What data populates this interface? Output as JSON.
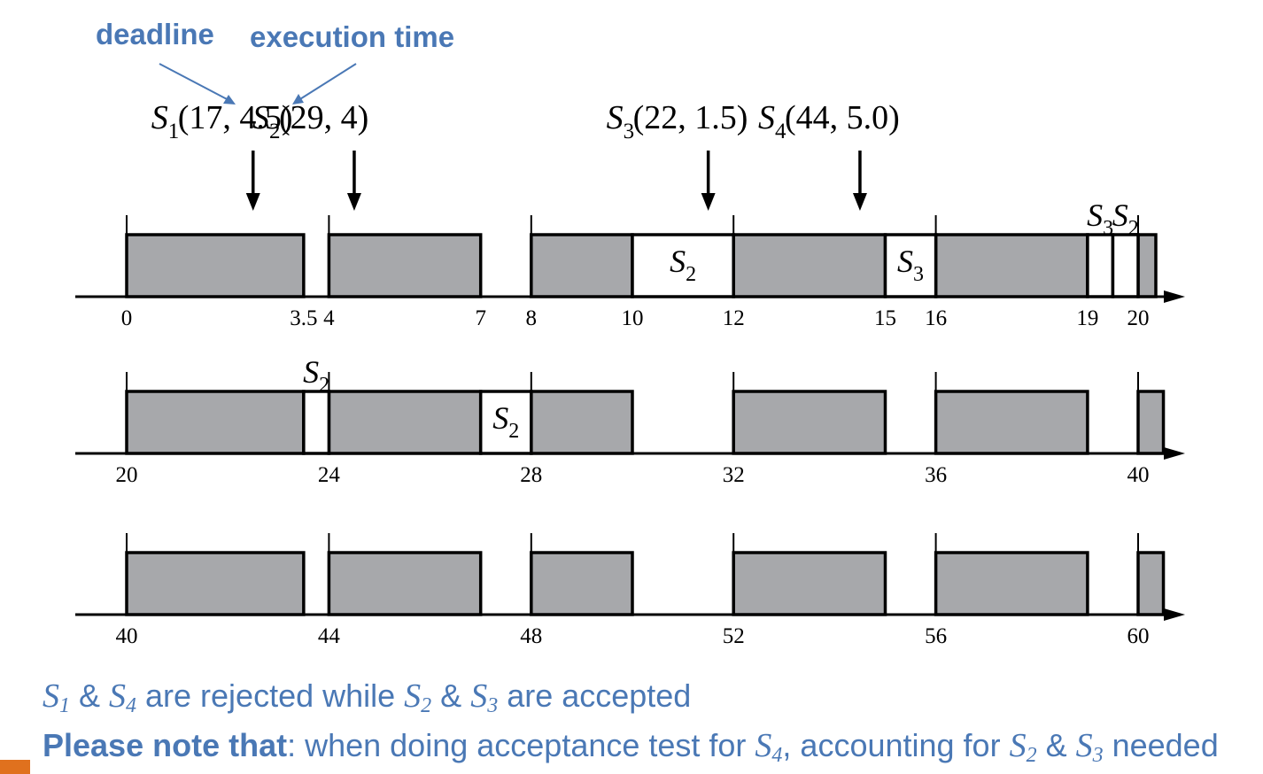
{
  "annotations": {
    "deadline_label": "deadline",
    "execution_time_label": "execution time",
    "color": "#4a78b5"
  },
  "arrivals": [
    {
      "task": "S",
      "sub": "1",
      "params": "(17, 4.5)",
      "arrival_time": 2.5
    },
    {
      "task": "S",
      "sub": "2",
      "params": "(29, 4)",
      "arrival_time": 4.5
    },
    {
      "task": "S",
      "sub": "3",
      "params": "(22, 1.5)",
      "arrival_time": 11.5
    },
    {
      "task": "S",
      "sub": "4",
      "params": "(44, 5.0)",
      "arrival_time": 14.5
    }
  ],
  "colors": {
    "busy_fill": "#a7a8ab",
    "slot_fill": "#ffffff",
    "line": "#000000",
    "caption": "#4a78b5",
    "logo": "#e0711e"
  },
  "rows": [
    {
      "start": 0,
      "end": 20,
      "tick_labels": [
        "0",
        "3.5",
        "4",
        "7",
        "8",
        "10",
        "12",
        "15",
        "16",
        "19",
        "20"
      ],
      "tick_values": [
        0,
        3.5,
        4,
        7,
        8,
        10,
        12,
        15,
        16,
        19,
        20
      ],
      "periodic_ticks": [
        0,
        4,
        8,
        12,
        16,
        20
      ],
      "busy": [
        [
          0,
          3.5
        ],
        [
          4,
          7
        ],
        [
          8,
          10
        ],
        [
          12,
          15
        ],
        [
          16,
          19
        ],
        [
          20,
          20.35
        ]
      ],
      "slots": [
        {
          "from": 10,
          "to": 12,
          "task": "S",
          "sub": "2",
          "label_position": "inside"
        },
        {
          "from": 15,
          "to": 16,
          "task": "S",
          "sub": "3",
          "label_position": "inside"
        },
        {
          "from": 19,
          "to": 19.5,
          "task": "S",
          "sub": "3",
          "label_position": "above"
        },
        {
          "from": 19.5,
          "to": 20,
          "task": "S",
          "sub": "2",
          "label_position": "above"
        }
      ]
    },
    {
      "start": 20,
      "end": 40,
      "tick_labels": [
        "20",
        "24",
        "28",
        "32",
        "36",
        "40"
      ],
      "tick_values": [
        20,
        24,
        28,
        32,
        36,
        40
      ],
      "periodic_ticks": [
        20,
        24,
        28,
        32,
        36,
        40
      ],
      "busy": [
        [
          20,
          23.5
        ],
        [
          24,
          27
        ],
        [
          28,
          30
        ],
        [
          32,
          35
        ],
        [
          36,
          39
        ],
        [
          40,
          40.5
        ]
      ],
      "slots": [
        {
          "from": 23.5,
          "to": 24,
          "task": "S",
          "sub": "2",
          "label_position": "above"
        },
        {
          "from": 27,
          "to": 28,
          "task": "S",
          "sub": "2",
          "label_position": "inside"
        }
      ]
    },
    {
      "start": 40,
      "end": 60,
      "tick_labels": [
        "40",
        "44",
        "48",
        "52",
        "56",
        "60"
      ],
      "tick_values": [
        40,
        44,
        48,
        52,
        56,
        60
      ],
      "periodic_ticks": [
        40,
        44,
        48,
        52,
        56,
        60
      ],
      "busy": [
        [
          40,
          43.5
        ],
        [
          44,
          47
        ],
        [
          48,
          50
        ],
        [
          52,
          55
        ],
        [
          56,
          59
        ],
        [
          60,
          60.5
        ]
      ],
      "slots": []
    }
  ],
  "caption1": {
    "s": "S",
    "s1": "1",
    "amp": " & ",
    "s4": "4",
    "mid": " are rejected while ",
    "s2": "2",
    "s3": "3",
    "end": " are accepted"
  },
  "caption2": {
    "bold": "Please note that",
    "text1": ": when doing acceptance test for ",
    "s": "S",
    "s4": "4",
    "text2": ", accounting for ",
    "s2": "2",
    "amp": " & ",
    "s3": "3",
    "text3": " needed"
  }
}
